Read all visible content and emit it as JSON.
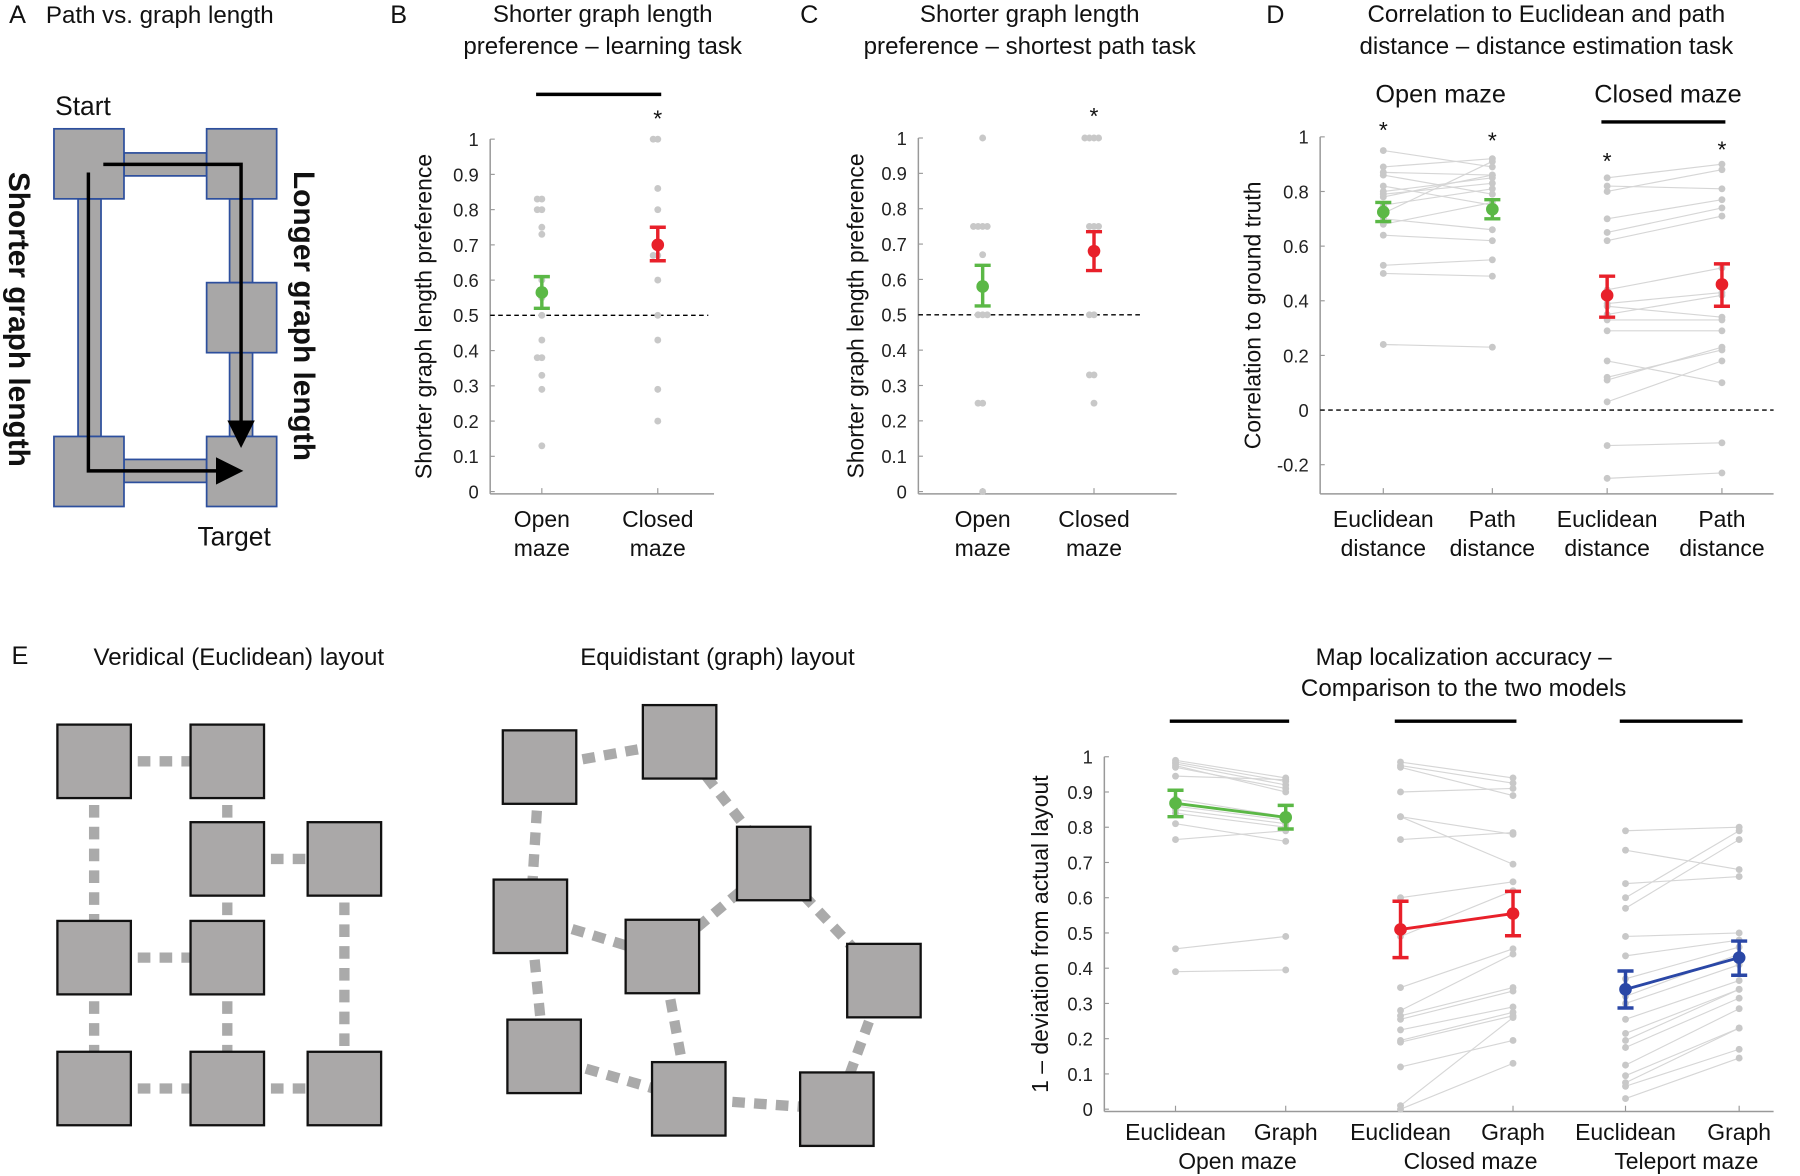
{
  "panel_a": {
    "letter": "A",
    "title": "Path vs. graph length",
    "start_label": "Start",
    "target_label": "Target",
    "left_label": "Shorter graph length",
    "right_label": "Longer graph length",
    "colors": {
      "box": "#a8a7a7",
      "outline": "#2d4f9d"
    }
  },
  "panel_e": {
    "letter": "E",
    "veridical_title": "Veridical (Euclidean) layout",
    "equidistant_title": "Equidistant (graph) layout"
  },
  "chart_data": [
    {
      "panel": "B",
      "type": "scatter",
      "title": [
        "Shorter graph length",
        "preference – learning task"
      ],
      "ylabel": "Shorter graph length preference",
      "ylim": [
        0,
        1
      ],
      "yticks": [
        0,
        0.1,
        0.2,
        0.3,
        0.4,
        0.5,
        0.6,
        0.7,
        0.8,
        0.9,
        1
      ],
      "reference_line": 0.5,
      "categories": [
        [
          "Open",
          "maze"
        ],
        [
          "Closed",
          "maze"
        ]
      ],
      "series": [
        {
          "category": 0,
          "color": "#5bb846",
          "mean": 0.565,
          "ci": [
            0.52,
            0.61
          ],
          "points": [
            0.83,
            0.83,
            0.8,
            0.8,
            0.75,
            0.73,
            0.6,
            0.55,
            0.5,
            0.43,
            0.38,
            0.38,
            0.33,
            0.29,
            0.13
          ]
        },
        {
          "category": 1,
          "color": "#e8202a",
          "mean": 0.7,
          "ci": [
            0.655,
            0.75
          ],
          "points": [
            1,
            1,
            0.86,
            0.8,
            0.67,
            0.67,
            0.6,
            0.5,
            0.43,
            0.29,
            0.2
          ]
        }
      ],
      "significance_bars": [
        [
          0,
          1
        ]
      ],
      "stars": [
        {
          "category": 1,
          "label": "*"
        }
      ]
    },
    {
      "panel": "C",
      "type": "scatter",
      "title": [
        "Shorter graph length",
        "preference –  shortest path task"
      ],
      "ylabel": "Shorter graph length preference",
      "ylim": [
        0,
        1
      ],
      "yticks": [
        0,
        0.1,
        0.2,
        0.3,
        0.4,
        0.5,
        0.6,
        0.7,
        0.8,
        0.9,
        1
      ],
      "reference_line": 0.5,
      "categories": [
        [
          "Open",
          "maze"
        ],
        [
          "Closed",
          "maze"
        ]
      ],
      "series": [
        {
          "category": 0,
          "color": "#5bb846",
          "mean": 0.58,
          "ci": [
            0.525,
            0.64
          ],
          "points": [
            1,
            0.75,
            0.75,
            0.75,
            0.75,
            0.67,
            0.5,
            0.5,
            0.5,
            0.25,
            0.25,
            0
          ]
        },
        {
          "category": 1,
          "color": "#e8202a",
          "mean": 0.68,
          "ci": [
            0.625,
            0.735
          ],
          "points": [
            1,
            1,
            1,
            1,
            0.75,
            0.75,
            0.75,
            0.67,
            0.5,
            0.5,
            0.33,
            0.33,
            0.25
          ]
        }
      ],
      "significance_bars": [],
      "stars": [
        {
          "category": 1,
          "label": "*"
        }
      ]
    },
    {
      "panel": "D",
      "type": "scatter",
      "title": [
        "Correlation to Euclidean and path",
        "distance – distance estimation task"
      ],
      "ylabel": "Correlation to ground truth",
      "ylim": [
        -0.3,
        1
      ],
      "yticks": [
        -0.2,
        0,
        0.2,
        0.4,
        0.6,
        0.8,
        1
      ],
      "reference_line": 0,
      "categories": [
        [
          "Euclidean",
          "distance"
        ],
        [
          "Path",
          "distance"
        ],
        [
          "Euclidean",
          "distance"
        ],
        [
          "Path",
          "distance"
        ]
      ],
      "group_labels": [
        "Open maze",
        "Closed maze"
      ],
      "groups": [
        {
          "color": "#5bb846",
          "connect_means": false,
          "means": [
            0.725,
            0.735
          ],
          "ci": [
            [
              0.69,
              0.76
            ],
            [
              0.7,
              0.77
            ]
          ],
          "pairs": [
            [
              0.95,
              0.89
            ],
            [
              0.89,
              0.92
            ],
            [
              0.87,
              0.86
            ],
            [
              0.86,
              0.79
            ],
            [
              0.82,
              0.75
            ],
            [
              0.8,
              0.85
            ],
            [
              0.79,
              0.83
            ],
            [
              0.78,
              0.86
            ],
            [
              0.75,
              0.81
            ],
            [
              0.72,
              0.91
            ],
            [
              0.7,
              0.66
            ],
            [
              0.68,
              0.76
            ],
            [
              0.64,
              0.62
            ],
            [
              0.53,
              0.55
            ],
            [
              0.5,
              0.49
            ],
            [
              0.24,
              0.23
            ]
          ]
        },
        {
          "color": "#e8202a",
          "connect_means": false,
          "means": [
            0.42,
            0.46
          ],
          "ci": [
            [
              0.34,
              0.49
            ],
            [
              0.38,
              0.535
            ]
          ],
          "pairs": [
            [
              0.85,
              0.9
            ],
            [
              0.82,
              0.81
            ],
            [
              0.8,
              0.88
            ],
            [
              0.7,
              0.77
            ],
            [
              0.65,
              0.74
            ],
            [
              0.62,
              0.71
            ],
            [
              0.44,
              0.52
            ],
            [
              0.39,
              0.43
            ],
            [
              0.38,
              0.34
            ],
            [
              0.35,
              0.42
            ],
            [
              0.33,
              0.33
            ],
            [
              0.29,
              0.29
            ],
            [
              0.18,
              0.1
            ],
            [
              0.12,
              0.22
            ],
            [
              0.11,
              0.23
            ],
            [
              0.03,
              0.18
            ],
            [
              -0.13,
              -0.12
            ],
            [
              -0.25,
              -0.23
            ]
          ]
        }
      ],
      "significance_bars": [
        [
          2,
          3
        ]
      ],
      "stars": [
        {
          "category": 0,
          "label": "*"
        },
        {
          "category": 1,
          "label": "*"
        },
        {
          "category": 2,
          "label": "*"
        },
        {
          "category": 3,
          "label": "*"
        }
      ]
    },
    {
      "panel": "E",
      "type": "line",
      "title": [
        "Map localization accuracy –",
        "Comparison to the two models"
      ],
      "ylabel": "1 – deviation from actual layout",
      "ylim": [
        0,
        1
      ],
      "yticks": [
        0,
        0.1,
        0.2,
        0.3,
        0.4,
        0.5,
        0.6,
        0.7,
        0.8,
        0.9,
        1
      ],
      "reference_line": null,
      "categories": [
        [
          "Euclidean"
        ],
        [
          "Graph"
        ],
        [
          "Euclidean"
        ],
        [
          "Graph"
        ],
        [
          "Euclidean"
        ],
        [
          "Graph"
        ]
      ],
      "group_labels": [
        "Open maze",
        "Closed maze",
        "Teleport maze"
      ],
      "groups": [
        {
          "color": "#5bb846",
          "connect_means": true,
          "means": [
            0.868,
            0.828
          ],
          "ci": [
            [
              0.83,
              0.905
            ],
            [
              0.795,
              0.862
            ]
          ],
          "pairs": [
            [
              0.99,
              0.94
            ],
            [
              0.985,
              0.93
            ],
            [
              0.98,
              0.92
            ],
            [
              0.975,
              0.9
            ],
            [
              0.97,
              0.91
            ],
            [
              0.945,
              0.935
            ],
            [
              0.88,
              0.83
            ],
            [
              0.86,
              0.82
            ],
            [
              0.85,
              0.81
            ],
            [
              0.84,
              0.8
            ],
            [
              0.81,
              0.76
            ],
            [
              0.765,
              0.79
            ],
            [
              0.455,
              0.49
            ],
            [
              0.39,
              0.395
            ]
          ]
        },
        {
          "color": "#e8202a",
          "connect_means": true,
          "means": [
            0.51,
            0.555
          ],
          "ci": [
            [
              0.43,
              0.59
            ],
            [
              0.492,
              0.618
            ]
          ],
          "pairs": [
            [
              0.985,
              0.94
            ],
            [
              0.975,
              0.925
            ],
            [
              0.97,
              0.89
            ],
            [
              0.9,
              0.91
            ],
            [
              0.83,
              0.695
            ],
            [
              0.83,
              0.78
            ],
            [
              0.765,
              0.785
            ],
            [
              0.6,
              0.645
            ],
            [
              0.49,
              0.62
            ],
            [
              0.345,
              0.455
            ],
            [
              0.28,
              0.44
            ],
            [
              0.265,
              0.345
            ],
            [
              0.255,
              0.335
            ],
            [
              0.225,
              0.29
            ],
            [
              0.195,
              0.275
            ],
            [
              0.19,
              0.265
            ],
            [
              0.12,
              0.195
            ],
            [
              0.01,
              0.26
            ],
            [
              0.0,
              0.13
            ]
          ]
        },
        {
          "color": "#2a47a6",
          "connect_means": true,
          "means": [
            0.34,
            0.43
          ],
          "ci": [
            [
              0.287,
              0.392
            ],
            [
              0.38,
              0.477
            ]
          ],
          "pairs": [
            [
              0.79,
              0.8
            ],
            [
              0.735,
              0.68
            ],
            [
              0.64,
              0.66
            ],
            [
              0.6,
              0.79
            ],
            [
              0.57,
              0.765
            ],
            [
              0.49,
              0.5
            ],
            [
              0.435,
              0.48
            ],
            [
              0.37,
              0.46
            ],
            [
              0.32,
              0.44
            ],
            [
              0.3,
              0.41
            ],
            [
              0.255,
              0.365
            ],
            [
              0.215,
              0.34
            ],
            [
              0.195,
              0.34
            ],
            [
              0.175,
              0.315
            ],
            [
              0.125,
              0.285
            ],
            [
              0.095,
              0.23
            ],
            [
              0.075,
              0.23
            ],
            [
              0.065,
              0.17
            ],
            [
              0.03,
              0.145
            ]
          ]
        }
      ],
      "significance_bars": [
        [
          0,
          1
        ],
        [
          2,
          3
        ],
        [
          4,
          5
        ]
      ],
      "stars": []
    }
  ]
}
